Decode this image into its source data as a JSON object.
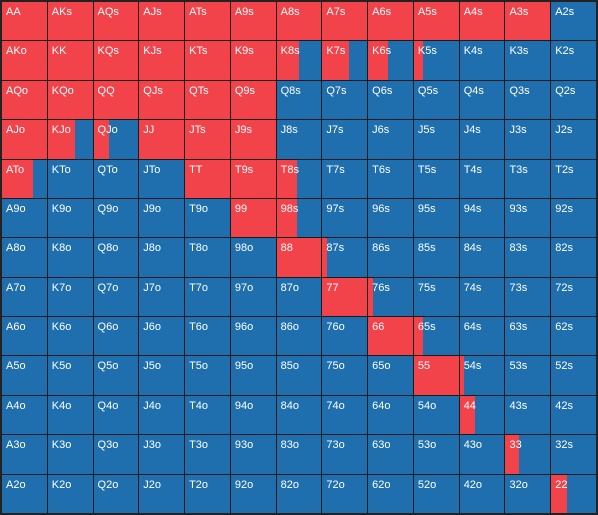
{
  "colors": {
    "raise": "#f2434b",
    "fold": "#1f6fae"
  },
  "grid": {
    "rows": [
      [
        "AA",
        "AKs",
        "AQs",
        "AJs",
        "ATs",
        "A9s",
        "A8s",
        "A7s",
        "A6s",
        "A5s",
        "A4s",
        "A3s",
        "A2s"
      ],
      [
        "AKo",
        "KK",
        "KQs",
        "KJs",
        "KTs",
        "K9s",
        "K8s",
        "K7s",
        "K6s",
        "K5s",
        "K4s",
        "K3s",
        "K2s"
      ],
      [
        "AQo",
        "KQo",
        "QQ",
        "QJs",
        "QTs",
        "Q9s",
        "Q8s",
        "Q7s",
        "Q6s",
        "Q5s",
        "Q4s",
        "Q3s",
        "Q2s"
      ],
      [
        "AJo",
        "KJo",
        "QJo",
        "JJ",
        "JTs",
        "J9s",
        "J8s",
        "J7s",
        "J6s",
        "J5s",
        "J4s",
        "J3s",
        "J2s"
      ],
      [
        "ATo",
        "KTo",
        "QTo",
        "JTo",
        "TT",
        "T9s",
        "T8s",
        "T7s",
        "T6s",
        "T5s",
        "T4s",
        "T3s",
        "T2s"
      ],
      [
        "A9o",
        "K9o",
        "Q9o",
        "J9o",
        "T9o",
        "99",
        "98s",
        "97s",
        "96s",
        "95s",
        "94s",
        "93s",
        "92s"
      ],
      [
        "A8o",
        "K8o",
        "Q8o",
        "J8o",
        "T8o",
        "98o",
        "88",
        "87s",
        "86s",
        "85s",
        "84s",
        "83s",
        "82s"
      ],
      [
        "A7o",
        "K7o",
        "Q7o",
        "J7o",
        "T7o",
        "97o",
        "87o",
        "77",
        "76s",
        "75s",
        "74s",
        "73s",
        "72s"
      ],
      [
        "A6o",
        "K6o",
        "Q6o",
        "J6o",
        "T6o",
        "96o",
        "86o",
        "76o",
        "66",
        "65s",
        "64s",
        "63s",
        "62s"
      ],
      [
        "A5o",
        "K5o",
        "Q5o",
        "J5o",
        "T5o",
        "95o",
        "85o",
        "75o",
        "65o",
        "55",
        "54s",
        "53s",
        "52s"
      ],
      [
        "A4o",
        "K4o",
        "Q4o",
        "J4o",
        "T4o",
        "94o",
        "84o",
        "74o",
        "64o",
        "54o",
        "44",
        "43s",
        "42s"
      ],
      [
        "A3o",
        "K3o",
        "Q3o",
        "J3o",
        "T3o",
        "93o",
        "83o",
        "73o",
        "63o",
        "53o",
        "43o",
        "33",
        "32s"
      ],
      [
        "A2o",
        "K2o",
        "Q2o",
        "J2o",
        "T2o",
        "92o",
        "82o",
        "72o",
        "62o",
        "52o",
        "42o",
        "32o",
        "22"
      ]
    ],
    "raise_fraction": [
      [
        1,
        1,
        1,
        1,
        1,
        1,
        1,
        1,
        1,
        1,
        1,
        1,
        0
      ],
      [
        1,
        1,
        1,
        1,
        1,
        1,
        0.5,
        0.6,
        0.45,
        0.2,
        0,
        0,
        0
      ],
      [
        1,
        1,
        1,
        1,
        1,
        1,
        0,
        0,
        0,
        0,
        0,
        0,
        0
      ],
      [
        1,
        0.6,
        0.35,
        1,
        1,
        1,
        0,
        0,
        0,
        0,
        0,
        0,
        0
      ],
      [
        0.7,
        0,
        0,
        0,
        1,
        1,
        0.45,
        0,
        0,
        0,
        0,
        0,
        0
      ],
      [
        0,
        0,
        0,
        0,
        0,
        1,
        0.45,
        0,
        0,
        0,
        0,
        0,
        0
      ],
      [
        0,
        0,
        0,
        0,
        0,
        0,
        1,
        0.1,
        0,
        0,
        0,
        0,
        0
      ],
      [
        0,
        0,
        0,
        0,
        0,
        0,
        0,
        1,
        0.1,
        0,
        0,
        0,
        0
      ],
      [
        0,
        0,
        0,
        0,
        0,
        0,
        0,
        0,
        1,
        0.2,
        0,
        0,
        0
      ],
      [
        0,
        0,
        0,
        0,
        0,
        0,
        0,
        0,
        0,
        1,
        0.1,
        0,
        0
      ],
      [
        0,
        0,
        0,
        0,
        0,
        0,
        0,
        0,
        0,
        0,
        0.35,
        0,
        0
      ],
      [
        0,
        0,
        0,
        0,
        0,
        0,
        0,
        0,
        0,
        0,
        0,
        0.3,
        0
      ],
      [
        0,
        0,
        0,
        0,
        0,
        0,
        0,
        0,
        0,
        0,
        0,
        0,
        0.35
      ]
    ]
  }
}
